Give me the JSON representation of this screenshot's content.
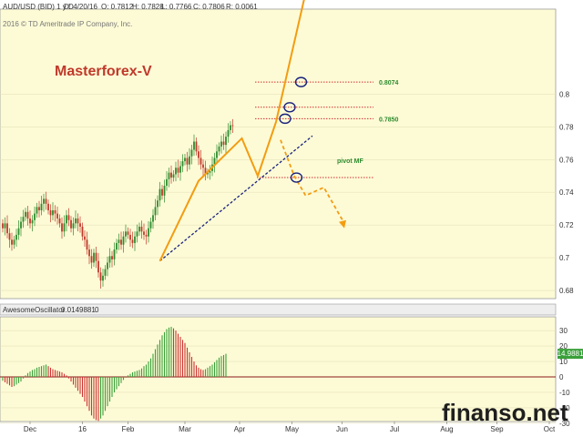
{
  "header": {
    "symbol": "AUD/USD (BID) 1 y D",
    "date": "D: 4/20/16",
    "open": "O: 0.7812",
    "high": "H: 0.7828",
    "low": "L: 0.7766",
    "close": "C: 0.7806",
    "range": "R: 0.0061",
    "copyright": "2016 © TD Ameritrade IP Company, Inc."
  },
  "watermark": "Masterforex-V",
  "brand": "finanso.net",
  "colors": {
    "main_bg": "#fdfbd6",
    "osc_bg": "#fdfbd6",
    "up_candle": "#2e8b2e",
    "down_candle": "#c0392b",
    "orange": "#f39c12",
    "trend_line": "#1a237e",
    "level_line": "#d32f2f",
    "level_text": "#2e8b2e",
    "watermark": "#c0392b",
    "osc_green": "#3aa03a",
    "osc_red": "#cc3333",
    "zero_line": "#8b1a1a"
  },
  "levels": [
    {
      "label": "0.8074",
      "value": 0.8074
    },
    {
      "label": "",
      "value": 0.792
    },
    {
      "label": "0.7850",
      "value": 0.785
    },
    {
      "label": "pivot MF",
      "value": 0.749
    }
  ],
  "oscillator": {
    "name": "AwesomeOscillator",
    "value": "0.0149881",
    "extra": "0",
    "current_label": "14.9881"
  },
  "chart_data": {
    "type": "candlestick",
    "instrument": "AUD/USD",
    "price_axis": {
      "ylim": [
        0.675,
        0.852
      ],
      "ticks": [
        0.68,
        0.7,
        0.72,
        0.74,
        0.76,
        0.78,
        0.8
      ]
    },
    "osc_axis": {
      "ylim": [
        -36,
        36
      ],
      "ticks": [
        30,
        20,
        10,
        0,
        -10,
        -20,
        -30
      ]
    },
    "x_ticks": [
      "Dec",
      "16",
      "Feb",
      "Mar",
      "Apr",
      "May",
      "Jun",
      "Jul",
      "Aug",
      "Sep",
      "Oct"
    ],
    "x_ticks_bars": [
      12,
      35,
      55,
      80,
      104,
      127,
      149,
      172,
      195,
      217,
      240
    ],
    "close": [
      0.718,
      0.721,
      0.715,
      0.711,
      0.708,
      0.711,
      0.714,
      0.718,
      0.722,
      0.725,
      0.728,
      0.724,
      0.721,
      0.723,
      0.727,
      0.731,
      0.729,
      0.733,
      0.736,
      0.733,
      0.729,
      0.726,
      0.729,
      0.727,
      0.724,
      0.721,
      0.716,
      0.721,
      0.726,
      0.723,
      0.718,
      0.721,
      0.724,
      0.721,
      0.719,
      0.713,
      0.711,
      0.705,
      0.701,
      0.697,
      0.703,
      0.698,
      0.691,
      0.686,
      0.689,
      0.693,
      0.697,
      0.701,
      0.699,
      0.705,
      0.709,
      0.711,
      0.708,
      0.713,
      0.716,
      0.714,
      0.711,
      0.709,
      0.713,
      0.716,
      0.719,
      0.716,
      0.714,
      0.713,
      0.718,
      0.722,
      0.726,
      0.731,
      0.735,
      0.742,
      0.738,
      0.744,
      0.748,
      0.752,
      0.749,
      0.751,
      0.755,
      0.752,
      0.756,
      0.759,
      0.761,
      0.757,
      0.762,
      0.766,
      0.771,
      0.765,
      0.761,
      0.757,
      0.755,
      0.751,
      0.752,
      0.753,
      0.757,
      0.761,
      0.765,
      0.768,
      0.771,
      0.769,
      0.774,
      0.778,
      0.781,
      0.7806
    ],
    "ao_values": [
      -2.5,
      -3.5,
      -4.5,
      -5.5,
      -6.5,
      -6,
      -5,
      -4,
      -3,
      -1,
      1,
      2.5,
      3.5,
      4.5,
      5,
      6,
      6.5,
      7,
      7.5,
      8,
      7,
      6,
      5,
      4.5,
      4,
      3.5,
      3,
      2,
      1,
      -1,
      -3,
      -5,
      -7,
      -9,
      -11,
      -13,
      -16,
      -19,
      -22,
      -25,
      -27,
      -28,
      -28.5,
      -27,
      -25,
      -22,
      -19,
      -16,
      -13,
      -10,
      -8,
      -6,
      -4,
      -2,
      -0.5,
      1,
      2,
      3,
      3.5,
      4,
      4.5,
      5.5,
      7,
      8,
      10,
      12,
      15,
      18,
      21,
      24,
      27,
      29,
      31,
      32,
      32.5,
      31.5,
      30,
      28,
      26,
      24,
      22,
      19,
      16,
      13,
      10,
      7.5,
      6,
      5,
      4.5,
      5,
      6,
      7,
      8,
      9.5,
      11,
      12.5,
      13.5,
      14.2,
      14.9881
    ]
  }
}
